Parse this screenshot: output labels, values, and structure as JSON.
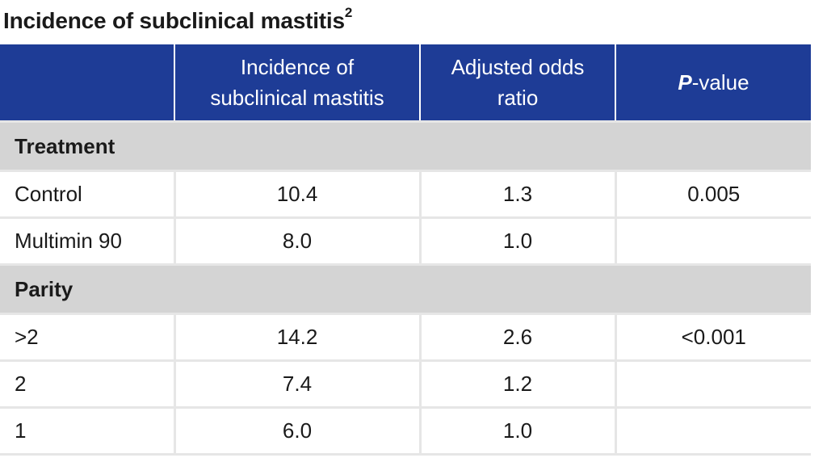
{
  "title": "Incidence of subclinical mastitis",
  "title_superscript": "2",
  "colors": {
    "header_bg": "#1e3c96",
    "group_bg": "#d4d4d4",
    "grid": "#e6e6e6"
  },
  "chart_data": {
    "type": "table",
    "columns": [
      "",
      "Incidence of subclinical mastitis",
      "Adjusted odds ratio",
      "P-value"
    ],
    "groups": [
      {
        "label": "Treatment",
        "rows": [
          {
            "label": "Control",
            "incidence": "10.4",
            "odds_ratio": "1.3",
            "p_value": "0.005"
          },
          {
            "label": "Multimin 90",
            "incidence": "8.0",
            "odds_ratio": "1.0",
            "p_value": ""
          }
        ]
      },
      {
        "label": "Parity",
        "rows": [
          {
            "label": ">2",
            "incidence": "14.2",
            "odds_ratio": "2.6",
            "p_value": "<0.001"
          },
          {
            "label": "2",
            "incidence": "7.4",
            "odds_ratio": "1.2",
            "p_value": ""
          },
          {
            "label": "1",
            "incidence": "6.0",
            "odds_ratio": "1.0",
            "p_value": ""
          }
        ]
      }
    ],
    "header_parts": {
      "incidence": [
        "Incidence of",
        "subclinical mastitis"
      ],
      "odds": [
        "Adjusted odds",
        "ratio"
      ],
      "p_italic": "P",
      "p_rest": "-value"
    }
  }
}
